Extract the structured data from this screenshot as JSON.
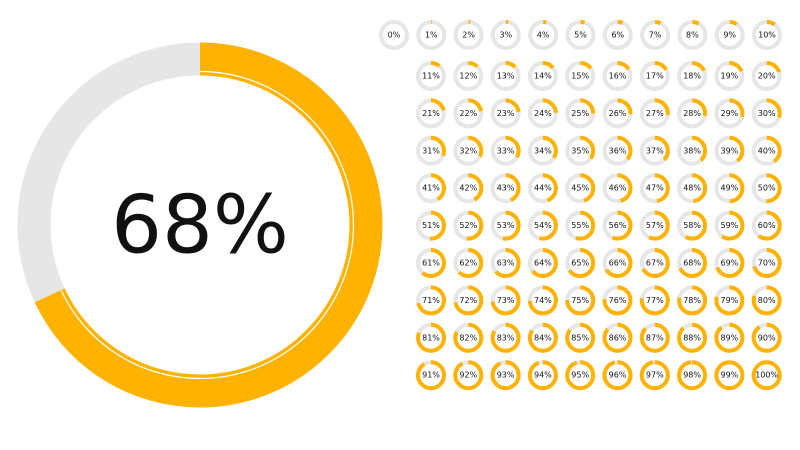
{
  "chart_data": [
    {
      "type": "donut",
      "value": 68,
      "value_label": "68%",
      "color": "#ffb300",
      "track": "#e6e6e6"
    },
    {
      "type": "donut-grid",
      "color": "#ffb300",
      "track": "#e6e6e6",
      "values": [
        0,
        1,
        2,
        3,
        4,
        5,
        6,
        7,
        8,
        9,
        10,
        11,
        12,
        13,
        14,
        15,
        16,
        17,
        18,
        19,
        20,
        21,
        22,
        23,
        24,
        25,
        26,
        27,
        28,
        29,
        30,
        31,
        32,
        33,
        34,
        35,
        36,
        37,
        38,
        39,
        40,
        41,
        42,
        43,
        44,
        45,
        46,
        47,
        48,
        49,
        50,
        51,
        52,
        53,
        54,
        55,
        56,
        57,
        58,
        59,
        60,
        61,
        62,
        63,
        64,
        65,
        66,
        67,
        68,
        69,
        70,
        71,
        72,
        73,
        74,
        75,
        76,
        77,
        78,
        79,
        80,
        81,
        82,
        83,
        84,
        85,
        86,
        87,
        88,
        89,
        90,
        91,
        92,
        93,
        94,
        95,
        96,
        97,
        98,
        99,
        100
      ],
      "value_labels": [
        "0%",
        "1%",
        "2%",
        "3%",
        "4%",
        "5%",
        "6%",
        "7%",
        "8%",
        "9%",
        "10%",
        "11%",
        "12%",
        "13%",
        "14%",
        "15%",
        "16%",
        "17%",
        "18%",
        "19%",
        "20%",
        "21%",
        "22%",
        "23%",
        "24%",
        "25%",
        "26%",
        "27%",
        "28%",
        "29%",
        "30%",
        "31%",
        "32%",
        "33%",
        "34%",
        "35%",
        "36%",
        "37%",
        "38%",
        "39%",
        "40%",
        "41%",
        "42%",
        "43%",
        "44%",
        "45%",
        "46%",
        "47%",
        "48%",
        "49%",
        "50%",
        "51%",
        "52%",
        "53%",
        "54%",
        "55%",
        "56%",
        "57%",
        "58%",
        "59%",
        "60%",
        "61%",
        "62%",
        "63%",
        "64%",
        "65%",
        "66%",
        "67%",
        "68%",
        "69%",
        "70%",
        "71%",
        "72%",
        "73%",
        "74%",
        "75%",
        "76%",
        "77%",
        "78%",
        "79%",
        "80%",
        "81%",
        "82%",
        "83%",
        "84%",
        "85%",
        "86%",
        "87%",
        "88%",
        "89%",
        "90%",
        "91%",
        "92%",
        "93%",
        "94%",
        "95%",
        "96%",
        "97%",
        "98%",
        "99%",
        "100%"
      ]
    }
  ]
}
